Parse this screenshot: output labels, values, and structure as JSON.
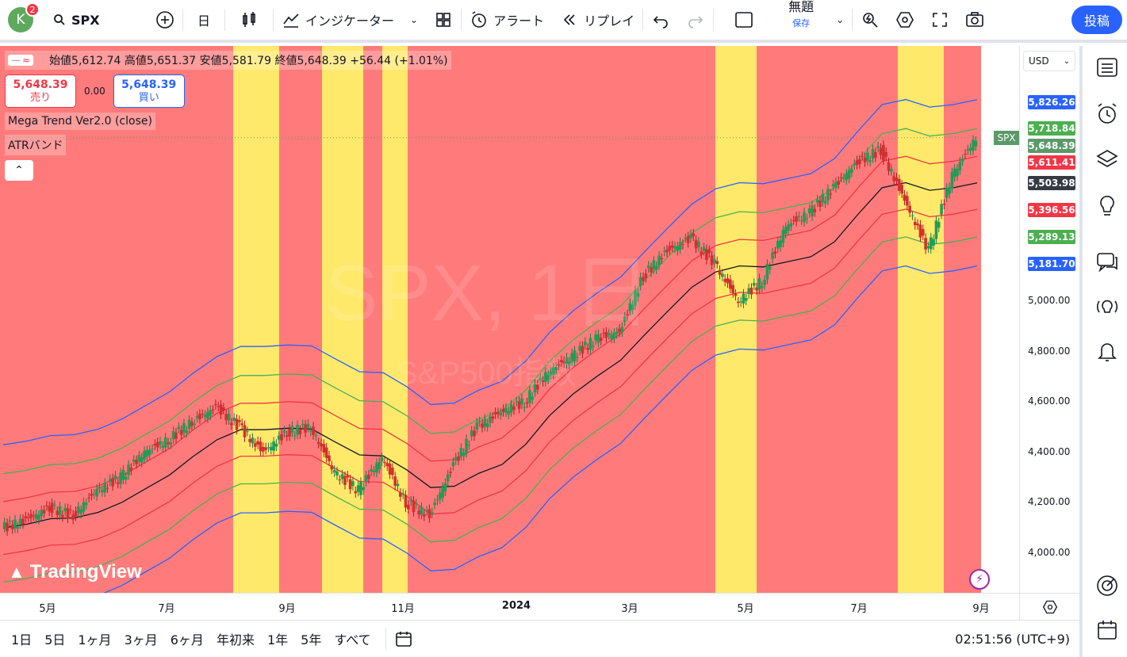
{
  "toolbar": {
    "avatar_letter": "K",
    "notification_count": "2",
    "symbol": "SPX",
    "interval": "日",
    "indicators_label": "インジケーター",
    "alert_label": "アラート",
    "replay_label": "リプレイ",
    "layout_name": "無題",
    "layout_sub": "保存",
    "post_label": "投稿"
  },
  "legend": {
    "ohlc_text": "始値5,612.74 高値5,651.37 安値5,581.79 終値5,648.39 +56.44 (+1.01%)",
    "sell_price": "5,648.39",
    "sell_label": "売り",
    "spread": "0.00",
    "buy_price": "5,648.39",
    "buy_label": "買い",
    "indicator1": "Mega Trend Ver2.0 (close)",
    "indicator2": "ATRバンド"
  },
  "watermark": {
    "symbol": "SPX, 1日",
    "name": "S&P500指数"
  },
  "brand": "TradingView",
  "price_axis": {
    "currency": "USD",
    "ticks": [
      "5,000.00",
      "4,800.00",
      "4,600.00",
      "4,400.00",
      "4,200.00",
      "4,000.00"
    ],
    "tags": [
      {
        "value": "5,826.26",
        "color": "#2962ff"
      },
      {
        "value": "5,718.84",
        "color": "#4caf50"
      },
      {
        "value": "5,648.39",
        "color": "#5b9a68"
      },
      {
        "value": "5,611.41",
        "color": "#f23645"
      },
      {
        "value": "5,503.98",
        "color": "#363a45"
      },
      {
        "value": "5,396.56",
        "color": "#f23645"
      },
      {
        "value": "5,289.13",
        "color": "#4caf50"
      },
      {
        "value": "5,181.70",
        "color": "#2962ff"
      }
    ],
    "symbol_tag": "SPX"
  },
  "time_axis": {
    "labels": [
      "5月",
      "7月",
      "9月",
      "11月",
      "2024",
      "3月",
      "5月",
      "7月",
      "9月"
    ]
  },
  "bottom": {
    "ranges": [
      "1日",
      "5日",
      "1ヶ月",
      "3ヶ月",
      "6ヶ月",
      "年初来",
      "1年",
      "5年",
      "すべて"
    ],
    "clock": "02:51:56 (UTC+9)"
  },
  "colors": {
    "bear_zone": "#ff7b7b",
    "bull_zone": "#ffe96b",
    "upper_band": "#2962ff",
    "mid_upper": "#4caf50",
    "inner": "#f23645",
    "basis": "#131722"
  },
  "chart_data": {
    "type": "candlestick",
    "symbol": "SPX",
    "interval": "1D",
    "x_range": [
      "2023-04",
      "2024-09"
    ],
    "ylim": [
      3900,
      5900
    ],
    "last_close": 5648.39,
    "series": [
      {
        "name": "close",
        "values": [
          4100,
          4130,
          4180,
          4150,
          4250,
          4300,
          4400,
          4450,
          4520,
          4580,
          4500,
          4400,
          4480,
          4500,
          4320,
          4250,
          4380,
          4200,
          4150,
          4350,
          4500,
          4560,
          4600,
          4720,
          4780,
          4850,
          4880,
          5100,
          5200,
          5250,
          5150,
          5000,
          5080,
          5300,
          5350,
          5450,
          5550,
          5600,
          5400,
          5200,
          5500,
          5648
        ]
      }
    ],
    "bands": [
      "upper",
      "mid_upper",
      "inner_upper",
      "basis",
      "inner_lower",
      "mid_lower",
      "lower"
    ]
  }
}
